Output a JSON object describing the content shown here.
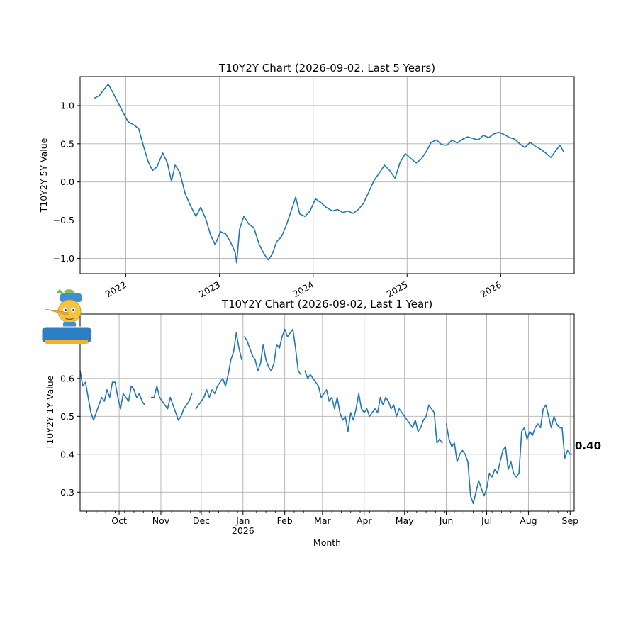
{
  "chart_data": [
    {
      "type": "line",
      "title": "T10Y2Y Chart (2026-09-02, Last 5 Years)",
      "xlabel": "",
      "ylabel": "T10Y2Y 5Y Value",
      "xlim": [
        "2021-07-07",
        "2026-10-14"
      ],
      "ylim": [
        -1.2,
        1.38
      ],
      "grid": true,
      "x_ticks": [
        {
          "date": "2022-01-01",
          "label": "2022"
        },
        {
          "date": "2023-01-01",
          "label": "2023"
        },
        {
          "date": "2024-01-01",
          "label": "2024"
        },
        {
          "date": "2025-01-01",
          "label": "2025"
        },
        {
          "date": "2026-01-01",
          "label": "2026"
        }
      ],
      "y_ticks": [
        {
          "value": -1.0,
          "label": "−1.0"
        },
        {
          "value": -0.5,
          "label": "−0.5"
        },
        {
          "value": 0.0,
          "label": "0.0"
        },
        {
          "value": 0.5,
          "label": "0.5"
        },
        {
          "value": 1.0,
          "label": "1.0"
        }
      ],
      "series": [
        {
          "color": "#1f77b4",
          "x": [
            "2021-09-02",
            "2021-09-20",
            "2021-10-08",
            "2021-10-25",
            "2021-11-12",
            "2021-11-30",
            "2021-12-20",
            "2022-01-10",
            "2022-01-31",
            "2022-02-20",
            "2022-03-10",
            "2022-03-30",
            "2022-04-15",
            "2022-05-03",
            "2022-05-25",
            "2022-06-12",
            "2022-06-28",
            "2022-07-12",
            "2022-07-30",
            "2022-08-20",
            "2022-09-10",
            "2022-10-01",
            "2022-10-20",
            "2022-11-08",
            "2022-11-28",
            "2022-12-15",
            "2023-01-05",
            "2023-01-25",
            "2023-02-12",
            "2023-03-03",
            "2023-03-09",
            "2023-03-20",
            "2023-04-06",
            "2023-04-25",
            "2023-05-15",
            "2023-06-05",
            "2023-06-25",
            "2023-07-10",
            "2023-07-25",
            "2023-08-12",
            "2023-08-30",
            "2023-09-20",
            "2023-10-10",
            "2023-10-25",
            "2023-11-10",
            "2023-11-30",
            "2023-12-20",
            "2024-01-10",
            "2024-01-31",
            "2024-02-20",
            "2024-03-15",
            "2024-04-05",
            "2024-04-25",
            "2024-05-15",
            "2024-06-05",
            "2024-06-25",
            "2024-07-15",
            "2024-08-05",
            "2024-08-25",
            "2024-09-15",
            "2024-10-05",
            "2024-10-25",
            "2024-11-15",
            "2024-12-05",
            "2024-12-25",
            "2025-01-15",
            "2025-02-05",
            "2025-02-25",
            "2025-03-15",
            "2025-04-05",
            "2025-04-25",
            "2025-05-15",
            "2025-06-05",
            "2025-06-25",
            "2025-07-15",
            "2025-08-05",
            "2025-08-25",
            "2025-09-15",
            "2025-10-05",
            "2025-10-25",
            "2025-11-15",
            "2025-12-05",
            "2025-12-25",
            "2026-01-15",
            "2026-02-05",
            "2026-02-25",
            "2026-03-15",
            "2026-04-05",
            "2026-04-25",
            "2026-05-15",
            "2026-06-05",
            "2026-06-25",
            "2026-07-15",
            "2026-08-05",
            "2026-08-20",
            "2026-09-02"
          ],
          "y": [
            1.1,
            1.13,
            1.21,
            1.28,
            1.17,
            1.05,
            0.92,
            0.79,
            0.75,
            0.7,
            0.48,
            0.26,
            0.15,
            0.2,
            0.38,
            0.25,
            0.01,
            0.22,
            0.13,
            -0.15,
            -0.31,
            -0.45,
            -0.33,
            -0.48,
            -0.7,
            -0.82,
            -0.65,
            -0.68,
            -0.78,
            -0.92,
            -1.06,
            -0.62,
            -0.45,
            -0.55,
            -0.6,
            -0.82,
            -0.95,
            -1.02,
            -0.95,
            -0.78,
            -0.72,
            -0.55,
            -0.35,
            -0.2,
            -0.42,
            -0.45,
            -0.38,
            -0.22,
            -0.27,
            -0.33,
            -0.38,
            -0.36,
            -0.4,
            -0.38,
            -0.41,
            -0.36,
            -0.28,
            -0.13,
            0.02,
            0.12,
            0.22,
            0.15,
            0.05,
            0.26,
            0.37,
            0.31,
            0.25,
            0.3,
            0.39,
            0.52,
            0.55,
            0.49,
            0.48,
            0.55,
            0.51,
            0.56,
            0.59,
            0.57,
            0.55,
            0.61,
            0.58,
            0.63,
            0.65,
            0.62,
            0.58,
            0.56,
            0.5,
            0.45,
            0.52,
            0.47,
            0.43,
            0.38,
            0.32,
            0.42,
            0.48,
            0.4
          ]
        }
      ]
    },
    {
      "type": "line",
      "title": "T10Y2Y Chart (2026-09-02, Last 1 Year)",
      "xlabel": "Month",
      "ylabel": "T10Y2Y 1Y Value",
      "xlim": [
        "2025-09-02",
        "2026-09-04"
      ],
      "ylim": [
        0.25,
        0.77
      ],
      "grid": true,
      "x_ticks": [
        {
          "date": "2025-10-01",
          "label": "Oct"
        },
        {
          "date": "2025-11-01",
          "label": "Nov"
        },
        {
          "date": "2025-12-01",
          "label": "Dec"
        },
        {
          "date": "2026-01-01",
          "label": "Jan",
          "sublabel": "2026"
        },
        {
          "date": "2026-02-01",
          "label": "Feb"
        },
        {
          "date": "2026-03-01",
          "label": "Mar"
        },
        {
          "date": "2026-04-01",
          "label": "Apr"
        },
        {
          "date": "2026-05-01",
          "label": "May"
        },
        {
          "date": "2026-06-01",
          "label": "Jun"
        },
        {
          "date": "2026-07-01",
          "label": "Jul"
        },
        {
          "date": "2026-08-01",
          "label": "Aug"
        },
        {
          "date": "2026-09-01",
          "label": "Sep"
        }
      ],
      "y_ticks": [
        {
          "value": 0.3,
          "label": "0.3"
        },
        {
          "value": 0.4,
          "label": "0.4"
        },
        {
          "value": 0.5,
          "label": "0.5"
        },
        {
          "value": 0.6,
          "label": "0.6"
        }
      ],
      "last_value_label": "0.40",
      "series": [
        {
          "color": "#1f77b4",
          "segments": [
            {
              "x": [
                "2025-09-02",
                "2025-09-04",
                "2025-09-06",
                "2025-09-08",
                "2025-09-10",
                "2025-09-12",
                "2025-09-14",
                "2025-09-16",
                "2025-09-18",
                "2025-09-20",
                "2025-09-22",
                "2025-09-24",
                "2025-09-26",
                "2025-09-28",
                "2025-09-30",
                "2025-10-02",
                "2025-10-04",
                "2025-10-06",
                "2025-10-08",
                "2025-10-10",
                "2025-10-12",
                "2025-10-14",
                "2025-10-16",
                "2025-10-18",
                "2025-10-20"
              ],
              "y": [
                0.62,
                0.58,
                0.59,
                0.55,
                0.51,
                0.49,
                0.51,
                0.53,
                0.55,
                0.54,
                0.57,
                0.55,
                0.59,
                0.59,
                0.55,
                0.52,
                0.56,
                0.55,
                0.54,
                0.58,
                0.57,
                0.55,
                0.56,
                0.54,
                0.53
              ]
            },
            {
              "x": [
                "2025-10-25",
                "2025-10-27",
                "2025-10-29",
                "2025-10-31",
                "2025-11-02",
                "2025-11-04",
                "2025-11-06",
                "2025-11-08",
                "2025-11-10",
                "2025-11-12",
                "2025-11-14",
                "2025-11-16",
                "2025-11-18",
                "2025-11-20",
                "2025-11-22",
                "2025-11-24"
              ],
              "y": [
                0.55,
                0.55,
                0.58,
                0.55,
                0.54,
                0.53,
                0.52,
                0.55,
                0.53,
                0.51,
                0.49,
                0.5,
                0.52,
                0.53,
                0.54,
                0.56
              ]
            },
            {
              "x": [
                "2025-11-27",
                "2025-11-29",
                "2025-12-01",
                "2025-12-03",
                "2025-12-05",
                "2025-12-07",
                "2025-12-09",
                "2025-12-11",
                "2025-12-13",
                "2025-12-15",
                "2025-12-17",
                "2025-12-19",
                "2025-12-21",
                "2025-12-23",
                "2025-12-25",
                "2025-12-27",
                "2025-12-29",
                "2025-12-31"
              ],
              "y": [
                0.52,
                0.53,
                0.54,
                0.55,
                0.57,
                0.55,
                0.57,
                0.56,
                0.58,
                0.59,
                0.6,
                0.58,
                0.61,
                0.65,
                0.67,
                0.72,
                0.68,
                0.65
              ]
            },
            {
              "x": [
                "2026-01-02",
                "2026-01-04",
                "2026-01-06",
                "2026-01-08",
                "2026-01-10",
                "2026-01-12",
                "2026-01-14",
                "2026-01-16",
                "2026-01-18",
                "2026-01-20",
                "2026-01-22",
                "2026-01-24",
                "2026-01-26",
                "2026-01-28",
                "2026-01-30",
                "2026-02-01",
                "2026-02-03",
                "2026-02-05",
                "2026-02-07",
                "2026-02-09",
                "2026-02-11",
                "2026-02-13"
              ],
              "y": [
                0.71,
                0.7,
                0.68,
                0.66,
                0.65,
                0.62,
                0.64,
                0.69,
                0.65,
                0.63,
                0.62,
                0.64,
                0.69,
                0.68,
                0.71,
                0.73,
                0.71,
                0.72,
                0.73,
                0.68,
                0.62,
                0.61
              ]
            },
            {
              "x": [
                "2026-02-16",
                "2026-02-18",
                "2026-02-20",
                "2026-02-22",
                "2026-02-24",
                "2026-02-26",
                "2026-02-28",
                "2026-03-02",
                "2026-03-04",
                "2026-03-06",
                "2026-03-08",
                "2026-03-10",
                "2026-03-12",
                "2026-03-14",
                "2026-03-16",
                "2026-03-18",
                "2026-03-20",
                "2026-03-22",
                "2026-03-24",
                "2026-03-26",
                "2026-03-28",
                "2026-03-30",
                "2026-04-01",
                "2026-04-03",
                "2026-04-05",
                "2026-04-07",
                "2026-04-09",
                "2026-04-11",
                "2026-04-13",
                "2026-04-15",
                "2026-04-17",
                "2026-04-19",
                "2026-04-21",
                "2026-04-23",
                "2026-04-25",
                "2026-04-27",
                "2026-04-29",
                "2026-05-01",
                "2026-05-03",
                "2026-05-05",
                "2026-05-07",
                "2026-05-09",
                "2026-05-11",
                "2026-05-13",
                "2026-05-15",
                "2026-05-17",
                "2026-05-19",
                "2026-05-21",
                "2026-05-23",
                "2026-05-25",
                "2026-05-27",
                "2026-05-29"
              ],
              "y": [
                0.62,
                0.6,
                0.61,
                0.6,
                0.59,
                0.58,
                0.55,
                0.56,
                0.57,
                0.54,
                0.55,
                0.52,
                0.55,
                0.51,
                0.49,
                0.5,
                0.46,
                0.51,
                0.49,
                0.52,
                0.56,
                0.52,
                0.51,
                0.52,
                0.5,
                0.51,
                0.52,
                0.51,
                0.55,
                0.53,
                0.55,
                0.54,
                0.52,
                0.53,
                0.5,
                0.52,
                0.51,
                0.5,
                0.49,
                0.48,
                0.47,
                0.49,
                0.46,
                0.47,
                0.49,
                0.5,
                0.53,
                0.52,
                0.51,
                0.43,
                0.44,
                0.43
              ]
            },
            {
              "x": [
                "2026-06-01",
                "2026-06-03",
                "2026-06-05",
                "2026-06-07",
                "2026-06-09",
                "2026-06-11",
                "2026-06-13",
                "2026-06-15",
                "2026-06-17",
                "2026-06-19",
                "2026-06-21",
                "2026-06-23",
                "2026-06-25",
                "2026-06-27",
                "2026-06-29",
                "2026-07-01",
                "2026-07-03",
                "2026-07-05",
                "2026-07-07",
                "2026-07-09",
                "2026-07-11",
                "2026-07-13",
                "2026-07-15",
                "2026-07-17",
                "2026-07-19",
                "2026-07-21",
                "2026-07-23",
                "2026-07-25",
                "2026-07-27",
                "2026-07-29",
                "2026-07-31",
                "2026-08-02",
                "2026-08-04",
                "2026-08-06",
                "2026-08-08",
                "2026-08-10",
                "2026-08-12",
                "2026-08-14",
                "2026-08-16",
                "2026-08-18",
                "2026-08-20",
                "2026-08-22",
                "2026-08-24",
                "2026-08-26",
                "2026-08-28",
                "2026-08-30",
                "2026-09-01",
                "2026-09-02"
              ],
              "y": [
                0.48,
                0.44,
                0.42,
                0.43,
                0.38,
                0.4,
                0.41,
                0.4,
                0.38,
                0.29,
                0.27,
                0.3,
                0.33,
                0.31,
                0.29,
                0.31,
                0.35,
                0.34,
                0.36,
                0.35,
                0.38,
                0.41,
                0.42,
                0.36,
                0.38,
                0.35,
                0.34,
                0.35,
                0.46,
                0.47,
                0.44,
                0.46,
                0.45,
                0.47,
                0.48,
                0.47,
                0.52,
                0.53,
                0.5,
                0.47,
                0.5,
                0.48,
                0.47,
                0.47,
                0.39,
                0.41,
                0.4,
                0.4
              ]
            }
          ]
        }
      ]
    }
  ]
}
